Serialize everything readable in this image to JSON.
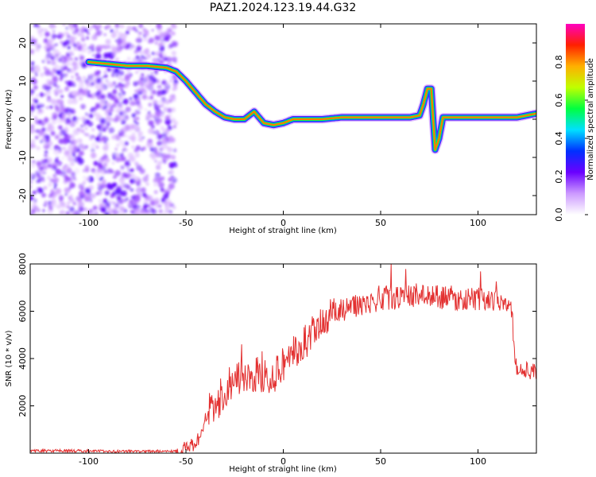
{
  "figure_title": "PAZ1.2024.123.19.44.G32",
  "chart_data": [
    {
      "type": "heatmap",
      "title": "PAZ1.2024.123.19.44.G32",
      "xlabel": "Height of straight line (km)",
      "ylabel": "Frequency (Hz)",
      "xlim": [
        -130,
        130
      ],
      "ylim": [
        -25,
        25
      ],
      "x_ticks": [
        -100,
        -50,
        0,
        50,
        100
      ],
      "y_ticks": [
        -20,
        -10,
        0,
        10,
        20
      ],
      "colorbar": {
        "label": "Normalized spectral amplitude",
        "range": [
          0,
          1
        ],
        "ticks": [
          0.0,
          0.2,
          0.4,
          0.6,
          0.8
        ],
        "colormap": [
          "#ffffff",
          "#cc99ff",
          "#6a00ff",
          "#0030ff",
          "#00e0ff",
          "#00ff40",
          "#c0ff00",
          "#ffb000",
          "#ff2000",
          "#ff00c0"
        ]
      },
      "ridge": {
        "x": [
          -100,
          -90,
          -80,
          -70,
          -60,
          -55,
          -50,
          -45,
          -40,
          -35,
          -30,
          -25,
          -20,
          -15,
          -10,
          -5,
          0,
          5,
          10,
          20,
          30,
          40,
          50,
          60,
          65,
          70,
          72,
          74,
          76,
          78,
          80,
          82,
          84,
          90,
          100,
          110,
          120,
          130
        ],
        "y": [
          15,
          14.5,
          14,
          14,
          13.5,
          12.5,
          10,
          7,
          4,
          2,
          0.5,
          0,
          0,
          2,
          -1,
          -1.5,
          -1,
          0,
          0,
          0,
          0.5,
          0.5,
          0.5,
          0.5,
          0.5,
          1,
          4,
          8,
          8,
          -8,
          -5,
          0.5,
          0.5,
          0.5,
          0.5,
          0.5,
          0.5,
          1.5
        ]
      }
    },
    {
      "type": "line",
      "xlabel": "Height of straight line (km)",
      "ylabel": "SNR (10 * v/v)",
      "xlim": [
        -130,
        130
      ],
      "ylim": [
        0,
        8000
      ],
      "x_ticks": [
        -100,
        -50,
        0,
        50,
        100
      ],
      "y_ticks": [
        2000,
        4000,
        6000,
        8000
      ],
      "color": "#e33131",
      "x": [
        -130,
        -110,
        -90,
        -70,
        -55,
        -50,
        -45,
        -42,
        -40,
        -35,
        -30,
        -25,
        -20,
        -15,
        -10,
        -5,
        0,
        5,
        10,
        15,
        20,
        25,
        30,
        40,
        50,
        60,
        70,
        80,
        90,
        100,
        110,
        117,
        119,
        121,
        125,
        130
      ],
      "y": [
        100,
        100,
        80,
        80,
        100,
        200,
        400,
        900,
        1600,
        2000,
        2600,
        3000,
        3200,
        3200,
        3400,
        3300,
        3800,
        4200,
        4600,
        5000,
        5400,
        5700,
        6000,
        6300,
        6500,
        6600,
        6700,
        6600,
        6500,
        6500,
        6500,
        6500,
        3800,
        3500,
        3500,
        3400
      ]
    }
  ]
}
